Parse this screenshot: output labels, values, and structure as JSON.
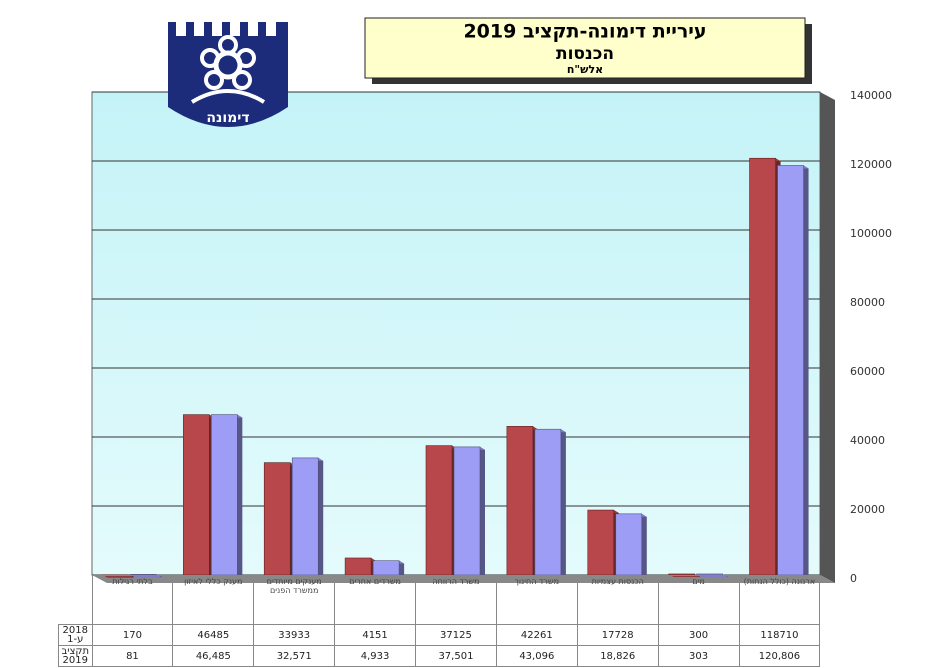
{
  "logo_text": "דימונה",
  "chart_data": {
    "type": "bar3d",
    "title": "עיריית דימונה-תקציב 2019",
    "subtitle": "הכנסות",
    "unit_label": "אלש\"ח",
    "categories": [
      "בלתי רגילות",
      "מענק כללי לאיזון",
      "מענקים מיוחדים ממשרד הפנים",
      "משרדים אחרים",
      "משרד הרווחה",
      "משרד החינוך",
      "הכנסות עצמיות",
      "מים",
      "ארנונה (כולל הנחות)"
    ],
    "series": [
      {
        "name": "2018 ע-1",
        "color": "#9d9df5",
        "values": [
          170,
          46485,
          33933,
          4151,
          37125,
          42261,
          17728,
          300,
          118710
        ]
      },
      {
        "name": "תקציב 2019",
        "color": "#b7474a",
        "values": [
          81,
          46485,
          32571,
          4933,
          37501,
          43096,
          18826,
          303,
          120806
        ],
        "value_labels": [
          "81",
          "46,485",
          "32,571",
          "4,933",
          "37,501",
          "43,096",
          "18,826",
          "303",
          "120,806"
        ]
      }
    ],
    "ylim": [
      0,
      140000
    ],
    "yticks": [
      0,
      20000,
      40000,
      60000,
      80000,
      100000,
      120000,
      140000
    ],
    "grid": true
  }
}
